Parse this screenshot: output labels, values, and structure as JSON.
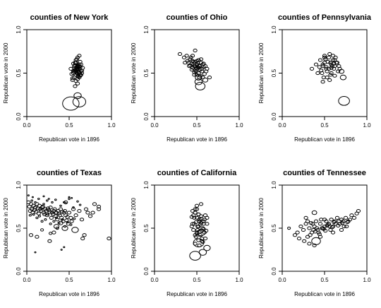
{
  "chart_data": [
    {
      "type": "scatter",
      "title": "counties of New York",
      "xlabel": "Republican vote in 1896",
      "ylabel": "Republican vote in 2000",
      "xlim": [
        0,
        1
      ],
      "ylim": [
        0,
        1
      ],
      "xticks": [
        "0.0",
        "0.5",
        "1.0"
      ],
      "yticks": [
        "0.0",
        "0.5",
        "1.0"
      ],
      "marker": "ellipse",
      "x": [
        0.58,
        0.6,
        0.62,
        0.55,
        0.57,
        0.63,
        0.61,
        0.59,
        0.56,
        0.64,
        0.6,
        0.58,
        0.62,
        0.54,
        0.66,
        0.57,
        0.61,
        0.59,
        0.63,
        0.56,
        0.6,
        0.58,
        0.52,
        0.65,
        0.62,
        0.6,
        0.57,
        0.55,
        0.61,
        0.64,
        0.58,
        0.6,
        0.56,
        0.62,
        0.59,
        0.53,
        0.61,
        0.57,
        0.63,
        0.6,
        0.58,
        0.62,
        0.56,
        0.65,
        0.59,
        0.61,
        0.55,
        0.6,
        0.63,
        0.57,
        0.62,
        0.64,
        0.54,
        0.52,
        0.62,
        0.6
      ],
      "y": [
        0.52,
        0.55,
        0.58,
        0.5,
        0.62,
        0.48,
        0.53,
        0.57,
        0.45,
        0.6,
        0.49,
        0.65,
        0.51,
        0.44,
        0.56,
        0.59,
        0.47,
        0.54,
        0.63,
        0.52,
        0.68,
        0.41,
        0.55,
        0.5,
        0.45,
        0.58,
        0.53,
        0.61,
        0.57,
        0.52,
        0.48,
        0.43,
        0.56,
        0.6,
        0.66,
        0.49,
        0.51,
        0.54,
        0.47,
        0.59,
        0.62,
        0.55,
        0.58,
        0.53,
        0.5,
        0.46,
        0.52,
        0.38,
        0.57,
        0.35,
        0.7,
        0.48,
        0.42,
        0.15,
        0.17,
        0.24
      ],
      "size": [
        1,
        1,
        1,
        1,
        1,
        1,
        1,
        1,
        1,
        1,
        1,
        1,
        1,
        1,
        1,
        1,
        1,
        1,
        1,
        1,
        1,
        1,
        1,
        1,
        1,
        1,
        1,
        1,
        1,
        1,
        1,
        1,
        1,
        1,
        1,
        1,
        1,
        1,
        1,
        1,
        1,
        1,
        1,
        1,
        1,
        1,
        1,
        1,
        1,
        1,
        1,
        1,
        1,
        4.5,
        3.5,
        2
      ]
    },
    {
      "type": "scatter",
      "title": "counties of Ohio",
      "xlabel": "Republican vote in 1896",
      "ylabel": "Republican vote in 2000",
      "xlim": [
        0,
        1
      ],
      "ylim": [
        0,
        1
      ],
      "xticks": [
        "0.0",
        "0.5",
        "1.0"
      ],
      "yticks": [
        "0.0",
        "0.5",
        "1.0"
      ],
      "marker": "ellipse",
      "x": [
        0.3,
        0.35,
        0.38,
        0.42,
        0.45,
        0.4,
        0.48,
        0.5,
        0.52,
        0.47,
        0.44,
        0.55,
        0.58,
        0.53,
        0.5,
        0.46,
        0.43,
        0.39,
        0.36,
        0.41,
        0.49,
        0.54,
        0.57,
        0.6,
        0.62,
        0.51,
        0.48,
        0.45,
        0.52,
        0.56,
        0.59,
        0.44,
        0.47,
        0.5,
        0.53,
        0.42,
        0.46,
        0.55,
        0.58,
        0.49,
        0.51,
        0.54,
        0.48,
        0.52,
        0.61,
        0.57,
        0.45,
        0.5,
        0.53,
        0.56,
        0.47,
        0.52,
        0.54,
        0.52,
        0.6,
        0.48,
        0.65
      ],
      "y": [
        0.72,
        0.68,
        0.7,
        0.66,
        0.64,
        0.62,
        0.63,
        0.6,
        0.65,
        0.58,
        0.61,
        0.62,
        0.57,
        0.59,
        0.55,
        0.6,
        0.68,
        0.64,
        0.62,
        0.58,
        0.56,
        0.54,
        0.6,
        0.58,
        0.55,
        0.57,
        0.53,
        0.56,
        0.5,
        0.52,
        0.49,
        0.54,
        0.51,
        0.48,
        0.45,
        0.59,
        0.63,
        0.66,
        0.61,
        0.52,
        0.62,
        0.47,
        0.58,
        0.56,
        0.52,
        0.45,
        0.7,
        0.64,
        0.58,
        0.55,
        0.48,
        0.4,
        0.35,
        0.45,
        0.42,
        0.76,
        0.45
      ],
      "size": [
        1,
        1,
        1,
        1,
        1,
        1,
        1,
        1,
        1,
        1,
        1,
        1,
        1,
        1,
        1,
        1,
        1,
        1,
        1,
        1,
        1,
        1,
        1,
        1,
        1,
        1,
        1,
        1,
        1,
        1,
        1,
        1,
        1,
        1,
        1,
        1,
        1,
        1,
        1,
        1,
        1,
        1,
        1,
        1,
        1,
        1,
        1,
        1,
        1,
        1,
        1,
        2,
        2.6,
        1.8,
        1.4,
        1,
        1
      ]
    },
    {
      "type": "scatter",
      "title": "counties of Pennsylvania",
      "xlabel": "Republican vote in 1896",
      "ylabel": "Republican vote in 2000",
      "xlim": [
        0,
        1
      ],
      "ylim": [
        0,
        1
      ],
      "xticks": [
        "0.0",
        "0.5",
        "1.0"
      ],
      "yticks": [
        "0.0",
        "0.5",
        "1.0"
      ],
      "marker": "ellipse",
      "x": [
        0.35,
        0.4,
        0.45,
        0.48,
        0.5,
        0.52,
        0.55,
        0.58,
        0.6,
        0.62,
        0.65,
        0.68,
        0.47,
        0.53,
        0.57,
        0.61,
        0.44,
        0.5,
        0.56,
        0.63,
        0.66,
        0.49,
        0.54,
        0.59,
        0.42,
        0.51,
        0.58,
        0.62,
        0.55,
        0.6,
        0.64,
        0.48,
        0.53,
        0.46,
        0.57,
        0.67,
        0.52,
        0.61,
        0.56,
        0.5,
        0.58,
        0.62,
        0.7,
        0.72,
        0.48,
        0.73
      ],
      "y": [
        0.55,
        0.6,
        0.65,
        0.58,
        0.62,
        0.55,
        0.68,
        0.6,
        0.65,
        0.58,
        0.62,
        0.55,
        0.5,
        0.52,
        0.48,
        0.55,
        0.57,
        0.7,
        0.72,
        0.68,
        0.52,
        0.45,
        0.63,
        0.58,
        0.5,
        0.66,
        0.5,
        0.47,
        0.55,
        0.7,
        0.62,
        0.6,
        0.45,
        0.53,
        0.62,
        0.58,
        0.57,
        0.61,
        0.42,
        0.68,
        0.56,
        0.65,
        0.52,
        0.45,
        0.4,
        0.18
      ],
      "size": [
        1,
        1,
        1,
        1,
        1,
        1,
        1,
        1,
        1,
        1,
        1,
        1,
        1,
        1,
        1,
        1,
        1,
        1,
        1,
        1,
        1,
        1,
        1,
        1,
        1,
        1,
        1,
        1,
        1,
        1,
        1,
        1,
        1,
        1,
        1,
        1,
        1,
        1,
        1,
        1,
        1,
        1,
        1.4,
        1.6,
        1,
        3
      ]
    },
    {
      "type": "scatter",
      "title": "counties of Texas",
      "xlabel": "Republican vote in 1896",
      "ylabel": "Republican vote in 2000",
      "xlim": [
        0,
        1
      ],
      "ylim": [
        0,
        1
      ],
      "xticks": [
        "0.0",
        "0.5",
        "1.0"
      ],
      "yticks": [
        "0.0",
        "0.5",
        "1.0"
      ],
      "marker": "ellipse",
      "x": [
        0.02,
        0.03,
        0.05,
        0.04,
        0.06,
        0.08,
        0.07,
        0.1,
        0.09,
        0.12,
        0.11,
        0.13,
        0.15,
        0.14,
        0.16,
        0.18,
        0.17,
        0.2,
        0.19,
        0.22,
        0.21,
        0.23,
        0.25,
        0.24,
        0.27,
        0.26,
        0.28,
        0.3,
        0.29,
        0.32,
        0.31,
        0.33,
        0.35,
        0.34,
        0.37,
        0.36,
        0.38,
        0.4,
        0.39,
        0.42,
        0.41,
        0.44,
        0.43,
        0.46,
        0.45,
        0.48,
        0.47,
        0.5,
        0.49,
        0.52,
        0.55,
        0.53,
        0.58,
        0.62,
        0.65,
        0.7,
        0.78,
        0.85,
        0.97,
        0.04,
        0.08,
        0.12,
        0.15,
        0.18,
        0.22,
        0.25,
        0.28,
        0.32,
        0.35,
        0.38,
        0.42,
        0.45,
        0.48,
        0.52,
        0.56,
        0.06,
        0.1,
        0.14,
        0.2,
        0.24,
        0.3,
        0.34,
        0.4,
        0.44,
        0.46,
        0.5,
        0.55,
        0.6,
        0.63,
        0.68,
        0.72,
        0.75,
        0.66,
        0.02,
        0.07,
        0.2,
        0.26,
        0.5,
        0.53,
        0.05,
        0.32,
        0.12,
        0.27,
        0.41,
        0.1,
        0.44,
        0.36,
        0.18,
        0.28,
        0.8,
        0.85,
        0.4,
        0.35,
        0.45,
        0.57,
        0.46
      ],
      "y": [
        0.8,
        0.75,
        0.78,
        0.7,
        0.72,
        0.76,
        0.68,
        0.74,
        0.71,
        0.78,
        0.69,
        0.73,
        0.76,
        0.67,
        0.72,
        0.74,
        0.7,
        0.68,
        0.75,
        0.72,
        0.66,
        0.7,
        0.73,
        0.65,
        0.69,
        0.71,
        0.74,
        0.68,
        0.62,
        0.7,
        0.66,
        0.72,
        0.68,
        0.64,
        0.7,
        0.6,
        0.67,
        0.72,
        0.65,
        0.69,
        0.62,
        0.68,
        0.58,
        0.65,
        0.7,
        0.63,
        0.59,
        0.68,
        0.55,
        0.62,
        0.72,
        0.58,
        0.65,
        0.7,
        0.6,
        0.72,
        0.68,
        0.75,
        0.38,
        0.65,
        0.66,
        0.62,
        0.64,
        0.58,
        0.6,
        0.66,
        0.55,
        0.58,
        0.62,
        0.56,
        0.6,
        0.52,
        0.57,
        0.54,
        0.61,
        0.82,
        0.8,
        0.84,
        0.78,
        0.82,
        0.8,
        0.83,
        0.76,
        0.8,
        0.79,
        0.84,
        0.74,
        0.81,
        0.77,
        0.42,
        0.68,
        0.64,
        0.38,
        0.88,
        0.86,
        0.87,
        0.84,
        0.86,
        0.85,
        0.42,
        0.45,
        0.4,
        0.35,
        0.25,
        0.22,
        0.28,
        0.5,
        0.48,
        0.44,
        0.78,
        0.72,
        0.56,
        0.52,
        0.5,
        0.48,
        0.8
      ],
      "size": [
        1,
        1,
        1,
        1,
        1,
        1,
        1,
        1,
        1,
        1,
        1,
        1,
        1,
        1,
        1,
        1,
        1,
        1,
        1,
        1,
        1,
        1,
        1,
        1,
        1,
        1,
        1,
        1,
        1,
        1,
        1,
        1,
        1,
        1,
        1,
        1,
        1,
        1,
        1,
        1,
        1,
        1,
        1,
        1,
        1,
        1,
        1,
        1,
        1,
        1,
        1,
        1,
        1,
        1,
        1,
        1,
        1,
        1,
        1,
        0.6,
        0.6,
        0.6,
        0.6,
        0.6,
        0.6,
        0.6,
        0.6,
        0.6,
        0.6,
        0.6,
        0.6,
        0.6,
        0.6,
        0.6,
        0.6,
        0.5,
        0.5,
        0.5,
        0.5,
        0.5,
        0.5,
        0.5,
        0.5,
        0.5,
        0.5,
        0.5,
        0.5,
        0.5,
        0.5,
        1,
        1,
        1,
        1,
        0.4,
        0.4,
        0.4,
        0.4,
        0.4,
        0.4,
        1,
        1,
        1,
        1,
        0.4,
        0.4,
        0.4,
        0.8,
        0.8,
        0.8,
        1,
        1,
        1.2,
        1.4,
        1.6,
        1.8,
        1
      ]
    },
    {
      "type": "scatter",
      "title": "counties of California",
      "xlabel": "Republican vote in 1896",
      "ylabel": "Republican vote in 2000",
      "xlim": [
        0,
        1
      ],
      "ylim": [
        0,
        1
      ],
      "xticks": [
        "0.0",
        "0.5",
        "1.0"
      ],
      "yticks": [
        "0.0",
        "0.5",
        "1.0"
      ],
      "marker": "ellipse",
      "x": [
        0.45,
        0.48,
        0.5,
        0.52,
        0.55,
        0.47,
        0.53,
        0.58,
        0.6,
        0.62,
        0.44,
        0.49,
        0.54,
        0.57,
        0.51,
        0.46,
        0.56,
        0.59,
        0.48,
        0.53,
        0.5,
        0.55,
        0.52,
        0.47,
        0.58,
        0.44,
        0.61,
        0.5,
        0.54,
        0.49,
        0.56,
        0.52,
        0.57,
        0.48,
        0.6,
        0.53,
        0.51,
        0.46,
        0.55,
        0.5,
        0.62,
        0.54,
        0.58,
        0.52,
        0.48,
        0.56,
        0.5,
        0.55,
        0.53,
        0.59,
        0.45,
        0.57,
        0.52,
        0.48,
        0.62,
        0.55
      ],
      "y": [
        0.7,
        0.68,
        0.72,
        0.66,
        0.64,
        0.62,
        0.6,
        0.58,
        0.65,
        0.55,
        0.63,
        0.57,
        0.54,
        0.5,
        0.52,
        0.48,
        0.47,
        0.45,
        0.42,
        0.58,
        0.62,
        0.56,
        0.52,
        0.55,
        0.49,
        0.52,
        0.47,
        0.45,
        0.42,
        0.4,
        0.38,
        0.36,
        0.34,
        0.32,
        0.38,
        0.3,
        0.48,
        0.65,
        0.61,
        0.44,
        0.62,
        0.46,
        0.55,
        0.66,
        0.72,
        0.35,
        0.76,
        0.78,
        0.58,
        0.6,
        0.55,
        0.22,
        0.33,
        0.18,
        0.27,
        0.45
      ],
      "size": [
        1,
        1,
        1,
        1,
        1,
        1,
        1,
        1,
        1,
        1,
        1,
        1,
        1,
        1,
        1,
        1,
        1,
        1,
        1,
        1,
        1,
        1,
        1,
        1,
        1,
        1,
        1,
        1,
        1,
        1,
        1,
        1,
        1,
        1,
        1,
        1,
        1,
        1,
        1,
        1,
        1,
        1,
        1,
        1,
        1,
        1,
        1,
        1,
        1,
        1,
        1,
        2,
        2.8,
        3,
        1.8,
        2.2
      ]
    },
    {
      "type": "scatter",
      "title": "counties of Tennessee",
      "xlabel": "Republican vote in 1896",
      "ylabel": "Republican vote in 2000",
      "xlim": [
        0,
        1
      ],
      "ylim": [
        0,
        1
      ],
      "xticks": [
        "0.0",
        "0.5",
        "1.0"
      ],
      "yticks": [
        "0.0",
        "0.5",
        "1.0"
      ],
      "marker": "ellipse",
      "x": [
        0.08,
        0.15,
        0.18,
        0.22,
        0.25,
        0.28,
        0.3,
        0.32,
        0.35,
        0.38,
        0.4,
        0.42,
        0.45,
        0.48,
        0.5,
        0.52,
        0.55,
        0.58,
        0.6,
        0.62,
        0.65,
        0.68,
        0.7,
        0.72,
        0.75,
        0.78,
        0.8,
        0.82,
        0.85,
        0.88,
        0.9,
        0.2,
        0.26,
        0.33,
        0.37,
        0.43,
        0.47,
        0.53,
        0.57,
        0.63,
        0.67,
        0.73,
        0.77,
        0.3,
        0.36,
        0.41,
        0.46,
        0.51,
        0.56,
        0.61,
        0.66,
        0.71,
        0.28,
        0.34,
        0.39,
        0.44,
        0.49,
        0.54,
        0.59,
        0.32,
        0.38,
        0.45,
        0.6,
        0.7,
        0.76,
        0.5,
        0.4,
        0.38
      ],
      "y": [
        0.5,
        0.42,
        0.45,
        0.52,
        0.48,
        0.55,
        0.4,
        0.5,
        0.45,
        0.52,
        0.58,
        0.48,
        0.55,
        0.5,
        0.52,
        0.58,
        0.55,
        0.6,
        0.52,
        0.58,
        0.62,
        0.55,
        0.6,
        0.58,
        0.62,
        0.58,
        0.6,
        0.65,
        0.62,
        0.67,
        0.7,
        0.38,
        0.35,
        0.42,
        0.48,
        0.45,
        0.5,
        0.53,
        0.48,
        0.55,
        0.58,
        0.52,
        0.57,
        0.58,
        0.55,
        0.5,
        0.6,
        0.47,
        0.52,
        0.57,
        0.53,
        0.56,
        0.62,
        0.56,
        0.46,
        0.43,
        0.49,
        0.54,
        0.51,
        0.32,
        0.3,
        0.4,
        0.45,
        0.48,
        0.52,
        0.6,
        0.35,
        0.68
      ],
      "size": [
        0.8,
        1,
        1,
        1,
        1,
        1,
        1,
        1,
        1,
        1,
        1,
        1,
        1,
        1,
        1,
        1,
        1,
        1,
        1,
        1,
        1,
        1,
        1,
        1,
        1,
        1,
        1,
        1,
        1,
        1,
        1,
        1,
        1,
        1,
        1,
        1,
        1,
        1,
        1,
        1,
        1,
        1,
        1,
        1,
        1,
        1,
        1,
        1,
        1,
        1,
        1,
        1,
        1,
        1,
        1,
        1,
        1,
        1,
        1,
        1,
        1,
        1,
        1,
        1,
        1,
        1,
        2.4,
        1.3
      ]
    }
  ]
}
